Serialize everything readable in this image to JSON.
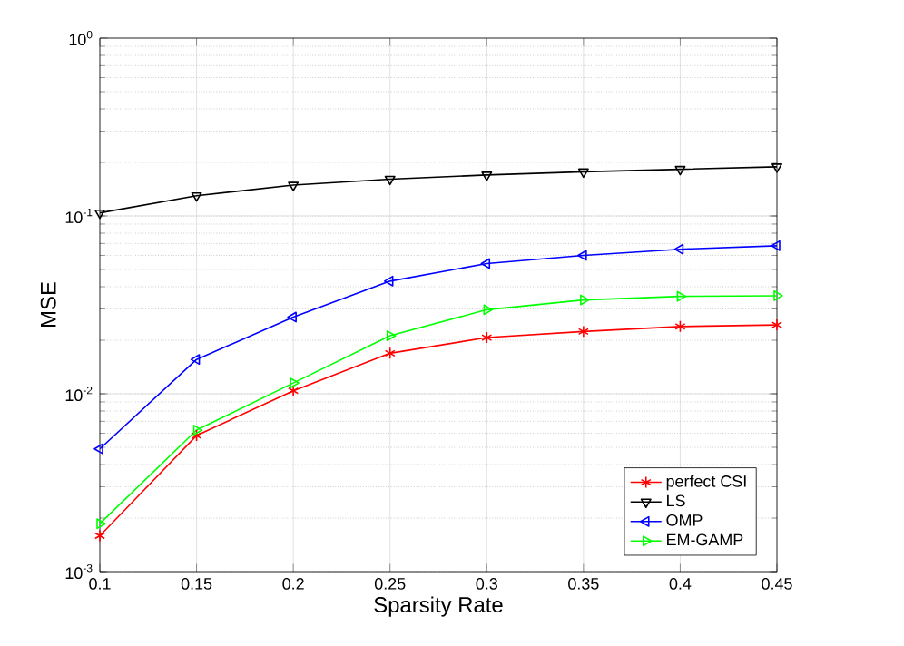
{
  "chart_data": {
    "type": "line",
    "xlabel": "Sparsity Rate",
    "ylabel": "MSE",
    "log": "y",
    "grid": true,
    "legend": "bottom right",
    "x": [
      0.1,
      0.15,
      0.2,
      0.25,
      0.3,
      0.35,
      0.4,
      0.45
    ],
    "xlim": [
      0.1,
      0.45
    ],
    "xticks": [
      0.1,
      0.15,
      0.2,
      0.25,
      0.3,
      0.35,
      0.4,
      0.45
    ],
    "ylim": [
      0.001,
      1
    ],
    "yticks": [
      {
        "value": 0.001,
        "label": "10$^{-3}$"
      },
      {
        "value": 0.01,
        "label": "10$^{-2}$"
      },
      {
        "value": 0.1,
        "label": "10$^{-1}$"
      },
      {
        "value": 1,
        "label": "10$^{0}$"
      }
    ],
    "series": [
      {
        "name": "perfect CSI",
        "color": "#ff0000",
        "marker": "cross",
        "values": [
          0.00159,
          0.00582,
          0.0104,
          0.0169,
          0.0207,
          0.0224,
          0.0239,
          0.0244
        ]
      },
      {
        "name": "LS",
        "color": "#000000",
        "marker": "triangle-down",
        "values": [
          0.104,
          0.13,
          0.149,
          0.161,
          0.17,
          0.177,
          0.183,
          0.189
        ]
      },
      {
        "name": "OMP",
        "color": "#0000ff",
        "marker": "triangle-left",
        "values": [
          0.0049,
          0.0156,
          0.027,
          0.043,
          0.054,
          0.06,
          0.065,
          0.068
        ]
      },
      {
        "name": "EM-GAMP",
        "color": "#00ff00",
        "marker": "triangle-right",
        "values": [
          0.00186,
          0.00625,
          0.0115,
          0.0212,
          0.0297,
          0.0337,
          0.0353,
          0.0356
        ]
      }
    ]
  }
}
